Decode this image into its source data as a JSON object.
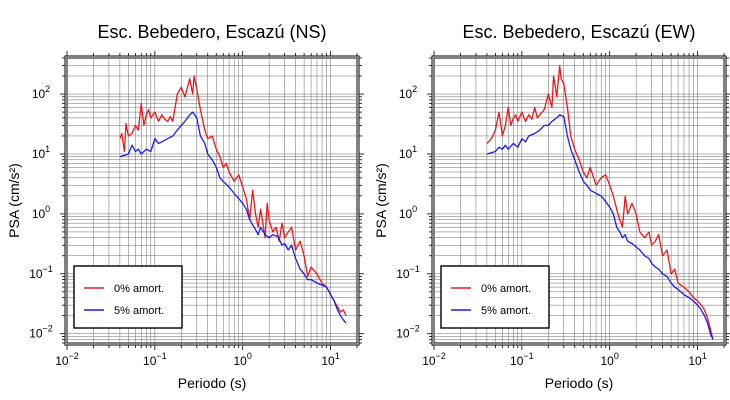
{
  "chart_data": [
    {
      "type": "line",
      "title": "Esc. Bebedero, Escazú (NS)",
      "xlabel": "Periodo (s)",
      "ylabel": "PSA (cm/s²)",
      "xscale": "log",
      "yscale": "log",
      "xlim": [
        0.01,
        20
      ],
      "ylim": [
        0.007,
        400
      ],
      "xticks": [
        {
          "base": "10",
          "exp": "−2"
        },
        {
          "base": "10",
          "exp": "−1"
        },
        {
          "base": "10",
          "exp": "0"
        },
        {
          "base": "10",
          "exp": "1"
        }
      ],
      "yticks": [
        {
          "base": "10",
          "exp": "−2"
        },
        {
          "base": "10",
          "exp": "−1"
        },
        {
          "base": "10",
          "exp": "0"
        },
        {
          "base": "10",
          "exp": "1"
        },
        {
          "base": "10",
          "exp": "2"
        }
      ],
      "grid": true,
      "legend_position": "bottom-left",
      "series": [
        {
          "name": "0% amort.",
          "color": "#e8191c",
          "x": [
            0.04,
            0.042,
            0.045,
            0.047,
            0.05,
            0.055,
            0.06,
            0.065,
            0.07,
            0.075,
            0.08,
            0.085,
            0.09,
            0.1,
            0.11,
            0.12,
            0.13,
            0.14,
            0.15,
            0.16,
            0.18,
            0.2,
            0.22,
            0.25,
            0.27,
            0.28,
            0.3,
            0.33,
            0.37,
            0.4,
            0.45,
            0.5,
            0.55,
            0.6,
            0.65,
            0.7,
            0.8,
            0.9,
            1.0,
            1.1,
            1.2,
            1.3,
            1.4,
            1.5,
            1.6,
            1.7,
            1.8,
            1.9,
            2.0,
            2.2,
            2.4,
            2.6,
            2.8,
            3.0,
            3.3,
            3.6,
            4.0,
            4.5,
            5.0,
            5.5,
            6.0,
            7.0,
            8.0,
            9.0,
            10.0,
            11,
            12,
            13,
            14,
            15
          ],
          "values": [
            18,
            22,
            11,
            32,
            20,
            22,
            30,
            25,
            70,
            30,
            45,
            55,
            40,
            50,
            35,
            45,
            38,
            35,
            42,
            35,
            100,
            130,
            90,
            180,
            100,
            200,
            120,
            55,
            25,
            18,
            20,
            12,
            9,
            6,
            7,
            5,
            3.5,
            4.5,
            2.8,
            1.8,
            0.8,
            2.5,
            1.0,
            0.6,
            1.2,
            0.7,
            0.4,
            1.5,
            0.8,
            0.5,
            0.6,
            0.35,
            0.7,
            0.4,
            0.5,
            0.6,
            0.25,
            0.35,
            0.2,
            0.09,
            0.13,
            0.1,
            0.07,
            0.06,
            0.045,
            0.035,
            0.028,
            0.023,
            0.025,
            0.02
          ]
        },
        {
          "name": "5% amort.",
          "color": "#1a1aee",
          "x": [
            0.04,
            0.045,
            0.05,
            0.055,
            0.06,
            0.065,
            0.07,
            0.08,
            0.09,
            0.1,
            0.11,
            0.12,
            0.14,
            0.16,
            0.18,
            0.2,
            0.22,
            0.25,
            0.27,
            0.3,
            0.33,
            0.37,
            0.4,
            0.45,
            0.5,
            0.55,
            0.6,
            0.7,
            0.8,
            0.9,
            1.0,
            1.1,
            1.2,
            1.3,
            1.4,
            1.5,
            1.6,
            1.8,
            2.0,
            2.2,
            2.5,
            2.8,
            3.0,
            3.3,
            3.6,
            4.0,
            4.5,
            5.0,
            5.5,
            6.0,
            7.0,
            8.0,
            9.0,
            10,
            11,
            12,
            13,
            14,
            15
          ],
          "values": [
            9,
            9.5,
            10,
            14,
            11,
            12,
            10,
            12,
            11,
            18,
            15,
            16,
            18,
            20,
            25,
            30,
            35,
            45,
            50,
            40,
            20,
            15,
            10,
            8,
            6,
            4,
            3.5,
            2.8,
            2.2,
            1.8,
            1.5,
            1.2,
            0.8,
            0.65,
            0.55,
            0.45,
            0.6,
            0.45,
            0.4,
            0.45,
            0.42,
            0.3,
            0.32,
            0.25,
            0.3,
            0.18,
            0.12,
            0.1,
            0.08,
            0.08,
            0.07,
            0.065,
            0.06,
            0.045,
            0.035,
            0.025,
            0.02,
            0.017,
            0.015
          ]
        }
      ]
    },
    {
      "type": "line",
      "title": "Esc. Bebedero, Escazú (EW)",
      "xlabel": "Periodo (s)",
      "ylabel": "PSA (cm/s²)",
      "xscale": "log",
      "yscale": "log",
      "xlim": [
        0.01,
        20
      ],
      "ylim": [
        0.007,
        400
      ],
      "xticks": [
        {
          "base": "10",
          "exp": "−2"
        },
        {
          "base": "10",
          "exp": "−1"
        },
        {
          "base": "10",
          "exp": "0"
        },
        {
          "base": "10",
          "exp": "1"
        }
      ],
      "yticks": [
        {
          "base": "10",
          "exp": "−2"
        },
        {
          "base": "10",
          "exp": "−1"
        },
        {
          "base": "10",
          "exp": "0"
        },
        {
          "base": "10",
          "exp": "1"
        },
        {
          "base": "10",
          "exp": "2"
        }
      ],
      "grid": true,
      "legend_position": "bottom-left",
      "series": [
        {
          "name": "0% amort.",
          "color": "#e8191c",
          "x": [
            0.04,
            0.045,
            0.05,
            0.055,
            0.06,
            0.065,
            0.07,
            0.075,
            0.08,
            0.085,
            0.09,
            0.1,
            0.11,
            0.12,
            0.13,
            0.14,
            0.15,
            0.16,
            0.18,
            0.2,
            0.22,
            0.23,
            0.25,
            0.27,
            0.28,
            0.3,
            0.33,
            0.36,
            0.4,
            0.45,
            0.5,
            0.55,
            0.6,
            0.7,
            0.8,
            0.9,
            1.0,
            1.1,
            1.2,
            1.3,
            1.4,
            1.5,
            1.6,
            1.8,
            2.0,
            2.2,
            2.5,
            2.8,
            3.0,
            3.3,
            3.6,
            4.0,
            4.5,
            5.0,
            5.5,
            6.0,
            7.0,
            8.0,
            9.0,
            10,
            11,
            12,
            13,
            14,
            15
          ],
          "values": [
            15,
            18,
            25,
            50,
            20,
            30,
            60,
            30,
            40,
            45,
            35,
            50,
            35,
            45,
            38,
            60,
            40,
            45,
            55,
            100,
            60,
            200,
            90,
            300,
            180,
            150,
            60,
            20,
            12,
            8,
            5,
            4,
            6,
            3,
            4,
            4.5,
            3,
            2,
            1.2,
            0.8,
            0.6,
            2.0,
            1.0,
            1.5,
            1.0,
            0.5,
            0.4,
            0.5,
            0.3,
            0.35,
            0.45,
            0.2,
            0.25,
            0.1,
            0.12,
            0.07,
            0.06,
            0.05,
            0.04,
            0.035,
            0.03,
            0.025,
            0.018,
            0.012,
            0.008
          ]
        },
        {
          "name": "5% amort.",
          "color": "#1a1aee",
          "x": [
            0.04,
            0.045,
            0.05,
            0.055,
            0.06,
            0.065,
            0.07,
            0.08,
            0.09,
            0.1,
            0.11,
            0.12,
            0.14,
            0.16,
            0.18,
            0.2,
            0.22,
            0.25,
            0.27,
            0.3,
            0.33,
            0.36,
            0.4,
            0.45,
            0.5,
            0.55,
            0.6,
            0.7,
            0.8,
            0.9,
            1.0,
            1.1,
            1.2,
            1.3,
            1.4,
            1.5,
            1.6,
            1.8,
            2.0,
            2.2,
            2.5,
            2.8,
            3.0,
            3.3,
            3.6,
            4.0,
            4.5,
            5.0,
            5.5,
            6.0,
            7.0,
            8.0,
            9.0,
            10,
            11,
            12,
            13,
            14,
            15
          ],
          "values": [
            10,
            10.5,
            11,
            13,
            12,
            14,
            12,
            15,
            13,
            18,
            16,
            20,
            22,
            25,
            30,
            30,
            35,
            40,
            45,
            42,
            20,
            12,
            8,
            5,
            3.5,
            3,
            2.5,
            2.2,
            2.0,
            1.6,
            1.3,
            1.0,
            0.6,
            0.5,
            0.4,
            0.45,
            0.35,
            0.32,
            0.28,
            0.25,
            0.2,
            0.18,
            0.15,
            0.13,
            0.12,
            0.1,
            0.09,
            0.07,
            0.06,
            0.055,
            0.045,
            0.04,
            0.035,
            0.03,
            0.025,
            0.02,
            0.015,
            0.01,
            0.008
          ]
        }
      ]
    }
  ]
}
